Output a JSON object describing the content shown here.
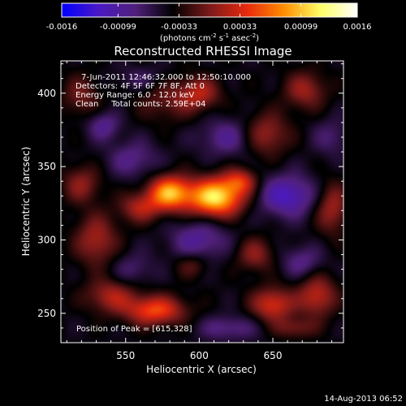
{
  "chart_data": {
    "type": "heatmap",
    "title": "Reconstructed RHESSI Image",
    "xlabel": "Heliocentric X (arcsec)",
    "ylabel": "Heliocentric Y (arcsec)",
    "xlim": [
      506,
      698
    ],
    "ylim": [
      230,
      422
    ],
    "x_ticks": [
      550,
      600,
      650
    ],
    "y_ticks": [
      250,
      300,
      350,
      400
    ],
    "grid": false,
    "colormap": "blue-purple-red-yellow-white",
    "colorbar": {
      "range": [
        -0.0016,
        0.0016
      ],
      "ticks": [
        "-0.0016",
        "-0.00099",
        "-0.00033",
        "0.00033",
        "0.00099",
        "0.0016"
      ],
      "label_parts": [
        "(photons cm",
        "-2",
        " s",
        "-1",
        " asec",
        "-2",
        ")"
      ],
      "colors": [
        "#0000ff",
        "#4b19c4",
        "#50207a",
        "#000000",
        "#7a1a1a",
        "#e8280e",
        "#ff8c00",
        "#ffff66",
        "#ffffff"
      ]
    },
    "annotations": {
      "time_range": "7-Jun-2011 12:46:32.000 to 12:50:10.000",
      "detectors": "Detectors: 4F 5F 6F 7F 8F, Att 0",
      "energy_range": "Energy Range: 6.0 - 12.0 keV",
      "clean_info": "Clean     Total counts: 2.59E+04",
      "peak": "Position of Peak = [615,328]"
    },
    "peak_position": [
      615,
      328
    ],
    "sources": [
      {
        "x": 580,
        "y": 332,
        "sx": 10,
        "sy": 8,
        "amp": 0.00135
      },
      {
        "x": 611,
        "y": 329,
        "sx": 13,
        "sy": 9,
        "amp": 0.0016
      },
      {
        "x": 560,
        "y": 322,
        "sx": 10,
        "sy": 7,
        "amp": 0.0006
      },
      {
        "x": 628,
        "y": 340,
        "sx": 8,
        "sy": 6,
        "amp": 0.0007
      },
      {
        "x": 570,
        "y": 252,
        "sx": 14,
        "sy": 7,
        "amp": 0.00095
      },
      {
        "x": 540,
        "y": 262,
        "sx": 12,
        "sy": 8,
        "amp": 0.0006
      },
      {
        "x": 650,
        "y": 256,
        "sx": 10,
        "sy": 8,
        "amp": 0.0008
      },
      {
        "x": 680,
        "y": 262,
        "sx": 9,
        "sy": 10,
        "amp": 0.0007
      },
      {
        "x": 665,
        "y": 240,
        "sx": 10,
        "sy": 5,
        "amp": 0.0004
      },
      {
        "x": 530,
        "y": 300,
        "sx": 10,
        "sy": 12,
        "amp": 0.0006
      },
      {
        "x": 520,
        "y": 338,
        "sx": 9,
        "sy": 9,
        "amp": 0.0005
      },
      {
        "x": 520,
        "y": 398,
        "sx": 9,
        "sy": 10,
        "amp": 0.0004
      },
      {
        "x": 578,
        "y": 395,
        "sx": 14,
        "sy": 10,
        "amp": 0.00035
      },
      {
        "x": 600,
        "y": 400,
        "sx": 10,
        "sy": 8,
        "amp": 0.0006
      },
      {
        "x": 645,
        "y": 372,
        "sx": 11,
        "sy": 10,
        "amp": 0.0006
      },
      {
        "x": 672,
        "y": 402,
        "sx": 10,
        "sy": 9,
        "amp": 0.00055
      },
      {
        "x": 690,
        "y": 322,
        "sx": 8,
        "sy": 12,
        "amp": 0.0006
      },
      {
        "x": 638,
        "y": 290,
        "sx": 9,
        "sy": 8,
        "amp": 0.0005
      },
      {
        "x": 595,
        "y": 283,
        "sx": 8,
        "sy": 6,
        "amp": 0.00035
      },
      {
        "x": 535,
        "y": 378,
        "sx": 8,
        "sy": 7,
        "amp": -0.00045
      },
      {
        "x": 660,
        "y": 330,
        "sx": 14,
        "sy": 10,
        "amp": -0.0007
      },
      {
        "x": 600,
        "y": 300,
        "sx": 14,
        "sy": 10,
        "amp": -0.0005
      },
      {
        "x": 620,
        "y": 370,
        "sx": 14,
        "sy": 9,
        "amp": -0.00045
      },
      {
        "x": 555,
        "y": 355,
        "sx": 12,
        "sy": 9,
        "amp": -0.0004
      },
      {
        "x": 670,
        "y": 285,
        "sx": 10,
        "sy": 8,
        "amp": -0.0004
      },
      {
        "x": 555,
        "y": 280,
        "sx": 10,
        "sy": 8,
        "amp": -0.0003
      },
      {
        "x": 690,
        "y": 370,
        "sx": 9,
        "sy": 9,
        "amp": -0.0003
      },
      {
        "x": 620,
        "y": 240,
        "sx": 14,
        "sy": 6,
        "amp": -0.0004
      },
      {
        "x": 560,
        "y": 410,
        "sx": 12,
        "sy": 6,
        "amp": -0.00025
      }
    ]
  },
  "footer": {
    "timestamp": "14-Aug-2013 06:52"
  }
}
